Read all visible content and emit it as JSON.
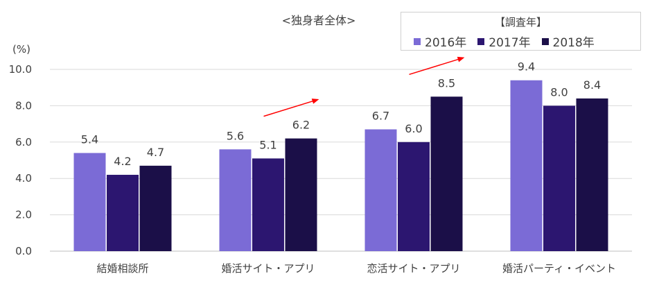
{
  "chart_data": {
    "type": "bar",
    "title": "<独身者全体>",
    "ylabel": "(%)",
    "ylim": [
      0,
      10
    ],
    "yticks": [
      "0.0",
      "2.0",
      "4.0",
      "6.0",
      "8.0",
      "10.0"
    ],
    "grid": true,
    "legend_title": "【調査年】",
    "legend_placement": "top-right",
    "categories": [
      "結婚相談所",
      "婚活サイト・アプリ",
      "恋活サイト・アプリ",
      "婚活パーティ・イベント"
    ],
    "series": [
      {
        "name": "2016年",
        "color": "#7b6bd6",
        "values": [
          5.4,
          5.6,
          6.7,
          9.4
        ]
      },
      {
        "name": "2017年",
        "color": "#2c1670",
        "values": [
          4.2,
          5.1,
          6.0,
          8.0
        ]
      },
      {
        "name": "2018年",
        "color": "#1b0f48",
        "values": [
          4.7,
          6.2,
          8.5,
          8.4
        ]
      }
    ],
    "annotations": [
      {
        "type": "arrow",
        "color": "#ff0000",
        "from_category": 1
      },
      {
        "type": "arrow",
        "color": "#ff0000",
        "from_category": 2
      }
    ]
  }
}
